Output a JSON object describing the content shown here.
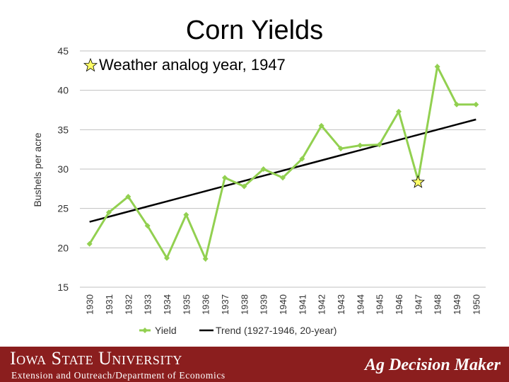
{
  "slide": {
    "title": "Corn Yields",
    "annotation": "Weather analog year, 1947"
  },
  "footer": {
    "logo": "Iowa State University",
    "subtitle": "Extension and Outreach/Department of Economics",
    "brand": "Ag Decision Maker"
  },
  "colors": {
    "yield_line": "#92d050",
    "trend_line": "#000000",
    "star_fill": "#ffff66",
    "footer_bg": "#8b1e1e",
    "grid": "#c0c0c0"
  },
  "chart_data": {
    "type": "line",
    "title": "Corn Yields",
    "xlabel": "",
    "ylabel": "Bushels per acre",
    "ylim": [
      15,
      45
    ],
    "yticks": [
      15,
      20,
      25,
      30,
      35,
      40,
      45
    ],
    "grid": true,
    "legend_position": "bottom",
    "categories": [
      "1930",
      "1931",
      "1932",
      "1933",
      "1934",
      "1935",
      "1936",
      "1937",
      "1938",
      "1939",
      "1940",
      "1941",
      "1942",
      "1943",
      "1944",
      "1945",
      "1946",
      "1947",
      "1948",
      "1949",
      "1950"
    ],
    "series": [
      {
        "name": "Yield",
        "values": [
          20.5,
          24.5,
          26.5,
          22.8,
          18.7,
          24.2,
          18.6,
          28.9,
          27.8,
          30.0,
          28.9,
          31.3,
          35.5,
          32.6,
          33.0,
          33.1,
          37.3,
          28.6,
          43.0,
          38.2,
          38.2
        ]
      },
      {
        "name": "Trend (1927-1946, 20-year)",
        "values": [
          23.3,
          23.95,
          24.6,
          25.25,
          25.9,
          26.55,
          27.2,
          27.85,
          28.5,
          29.15,
          29.8,
          30.45,
          31.1,
          31.75,
          32.4,
          33.05,
          33.7,
          34.35,
          35.0,
          35.65,
          36.3
        ]
      }
    ],
    "highlight": {
      "category": "1947"
    }
  }
}
